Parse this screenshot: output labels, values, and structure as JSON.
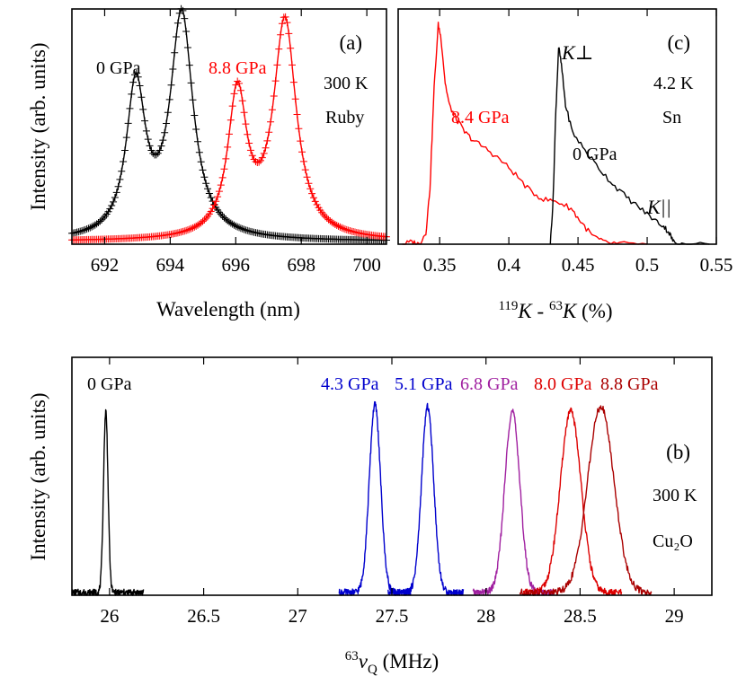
{
  "chart_data": [
    {
      "id": "a",
      "type": "line",
      "panel_label": "(a)",
      "xlabel": "Wavelength (nm)",
      "ylabel": "Intensity (arb. units)",
      "xlim": [
        691,
        700.6
      ],
      "ylim": [
        0,
        1.05
      ],
      "xticks": [
        692,
        694,
        696,
        698,
        700
      ],
      "annotations": [
        {
          "text": "0 GPa",
          "color": "#000000"
        },
        {
          "text": "8.8 GPa",
          "color": "#ff0000"
        },
        {
          "text": "300 K",
          "color": "#000000"
        },
        {
          "text": "Ruby",
          "color": "#000000"
        }
      ],
      "series": [
        {
          "color": "#000000",
          "markers": "plus",
          "peaks": [
            {
              "center": 692.95,
              "height": 0.67,
              "width": 0.35
            },
            {
              "center": 694.35,
              "height": 1.0,
              "width": 0.42
            }
          ],
          "baseline": 0.0
        },
        {
          "color": "#ff0000",
          "markers": "plus",
          "peaks": [
            {
              "center": 696.05,
              "height": 0.64,
              "width": 0.35
            },
            {
              "center": 697.5,
              "height": 0.97,
              "width": 0.42
            }
          ],
          "baseline": 0.0
        }
      ]
    },
    {
      "id": "c",
      "type": "line",
      "panel_label": "(c)",
      "xlabel_parts": {
        "sup1": "119",
        "k1": "K",
        "mid": " - ",
        "sup2": "63",
        "k2": "K",
        "tail": " (%)"
      },
      "xlim": [
        0.32,
        0.55
      ],
      "ylim": [
        0,
        1.05
      ],
      "xticks": [
        0.35,
        0.4,
        0.45,
        0.5,
        0.55
      ],
      "xtick_labels": [
        "0.35",
        "0.4",
        "0.45",
        "0.5",
        "0.55"
      ],
      "annotations": [
        {
          "text": "8.4 GPa",
          "color": "#ff0000"
        },
        {
          "text": "0 GPa",
          "color": "#000000"
        },
        {
          "text": "4.2 K",
          "color": "#000000"
        },
        {
          "text": "Sn",
          "color": "#000000"
        },
        {
          "text": "K⊥",
          "color": "#000000"
        },
        {
          "text": "K||",
          "color": "#000000"
        }
      ],
      "series": [
        {
          "color": "#ff0000",
          "points": [
            [
              0.323,
              0.0
            ],
            [
              0.33,
              0.01
            ],
            [
              0.335,
              0.0
            ],
            [
              0.34,
              0.05
            ],
            [
              0.343,
              0.25
            ],
            [
              0.346,
              0.7
            ],
            [
              0.349,
              0.98
            ],
            [
              0.351,
              0.92
            ],
            [
              0.354,
              0.72
            ],
            [
              0.357,
              0.62
            ],
            [
              0.362,
              0.56
            ],
            [
              0.368,
              0.5
            ],
            [
              0.375,
              0.46
            ],
            [
              0.385,
              0.42
            ],
            [
              0.395,
              0.37
            ],
            [
              0.405,
              0.31
            ],
            [
              0.415,
              0.24
            ],
            [
              0.425,
              0.2
            ],
            [
              0.435,
              0.19
            ],
            [
              0.445,
              0.16
            ],
            [
              0.452,
              0.1
            ],
            [
              0.46,
              0.04
            ],
            [
              0.468,
              0.01
            ],
            [
              0.48,
              0.0
            ],
            [
              0.5,
              0.0
            ]
          ]
        },
        {
          "color": "#000000",
          "points": [
            [
              0.43,
              0.0
            ],
            [
              0.432,
              0.2
            ],
            [
              0.434,
              0.6
            ],
            [
              0.436,
              0.88
            ],
            [
              0.438,
              0.8
            ],
            [
              0.441,
              0.62
            ],
            [
              0.446,
              0.5
            ],
            [
              0.455,
              0.42
            ],
            [
              0.465,
              0.34
            ],
            [
              0.475,
              0.27
            ],
            [
              0.485,
              0.21
            ],
            [
              0.495,
              0.16
            ],
            [
              0.505,
              0.11
            ],
            [
              0.512,
              0.08
            ],
            [
              0.516,
              0.05
            ],
            [
              0.519,
              0.01
            ],
            [
              0.525,
              0.0
            ],
            [
              0.545,
              0.0
            ]
          ]
        }
      ]
    },
    {
      "id": "b",
      "type": "line",
      "panel_label": "(b)",
      "ylabel": "Intensity (arb. units)",
      "xlabel_parts": {
        "sup": "63",
        "nu": "ν",
        "sub": "Q",
        "tail": " (MHz)"
      },
      "xlim": [
        25.8,
        29.2
      ],
      "ylim": [
        0,
        1.05
      ],
      "xticks": [
        26,
        26.5,
        27,
        27.5,
        28,
        28.5,
        29
      ],
      "xtick_labels": [
        "26",
        "26.5",
        "27",
        "27.5",
        "28",
        "28.5",
        "29"
      ],
      "annotations": [
        {
          "text": "0 GPa",
          "color": "#000000"
        },
        {
          "text": "4.3 GPa",
          "color": "#0000cd"
        },
        {
          "text": "5.1 GPa",
          "color": "#0000cd"
        },
        {
          "text": "6.8 GPa",
          "color": "#a020a0"
        },
        {
          "text": "8.0 GPa",
          "color": "#dd0000"
        },
        {
          "text": "8.8 GPa",
          "color": "#aa0000"
        },
        {
          "text": "300 K",
          "color": "#000000"
        },
        {
          "text": "Cu₂O",
          "color": "#000000"
        }
      ],
      "series": [
        {
          "color": "#000000",
          "center": 25.98,
          "height": 0.8,
          "width": 0.012,
          "x_range": [
            25.8,
            26.18
          ]
        },
        {
          "color": "#0000cd",
          "center": 27.41,
          "height": 0.83,
          "width": 0.03,
          "x_range": [
            27.22,
            27.6
          ]
        },
        {
          "color": "#0000cd",
          "center": 27.69,
          "height": 0.82,
          "width": 0.032,
          "x_range": [
            27.48,
            27.88
          ]
        },
        {
          "color": "#a020a0",
          "center": 28.14,
          "height": 0.8,
          "width": 0.04,
          "x_range": [
            27.93,
            28.36
          ]
        },
        {
          "color": "#dd0000",
          "center": 28.45,
          "height": 0.8,
          "width": 0.055,
          "x_range": [
            28.2,
            28.72
          ]
        },
        {
          "color": "#aa0000",
          "center": 28.61,
          "height": 0.82,
          "width": 0.07,
          "x_range": [
            28.18,
            28.88
          ]
        }
      ]
    }
  ]
}
